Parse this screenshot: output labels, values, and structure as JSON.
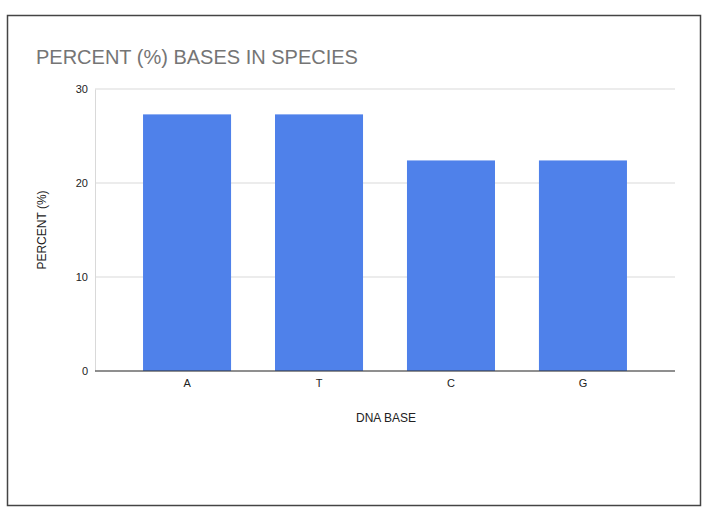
{
  "chart_data": {
    "type": "bar",
    "title": "PERCENT (%) BASES IN SPECIES",
    "x_label": "DNA BASE",
    "y_label": "PERCENT (%)",
    "categories": [
      "A",
      "T",
      "C",
      "G"
    ],
    "values": [
      27.3,
      27.3,
      22.4,
      22.4
    ],
    "color": "#4f81ea",
    "ylim": [
      0,
      30
    ],
    "yticks": [
      0,
      10,
      20,
      30
    ],
    "grid": true
  }
}
